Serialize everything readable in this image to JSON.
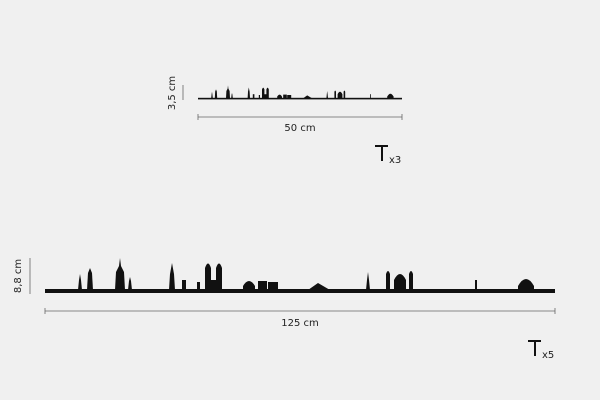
{
  "small": {
    "height": "3,5 cm",
    "width": "50 cm",
    "nails": "x3"
  },
  "large": {
    "height": "8,8 cm",
    "width": "125 cm",
    "nails": "x5"
  }
}
